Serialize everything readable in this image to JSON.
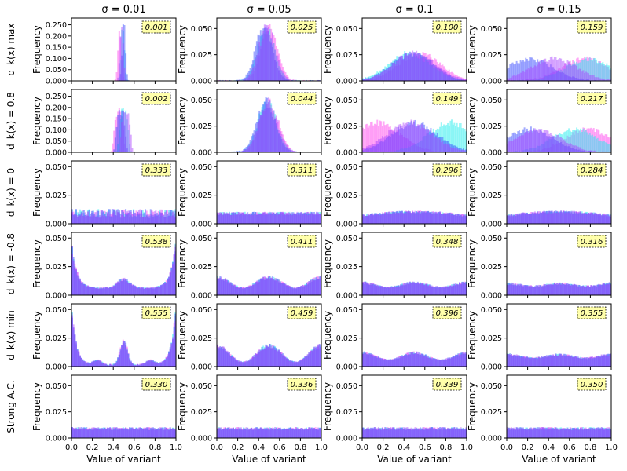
{
  "chart_data": {
    "type": "histogram-grid",
    "title": "",
    "column_titles": [
      "σ = 0.01",
      "σ = 0.05",
      "σ = 0.1",
      "σ = 0.15"
    ],
    "row_labels": [
      "d_k(x) max",
      "d_k(x) = 0.8",
      "d_k(x) = 0",
      "d_k(x) = -0.8",
      "d_k(x) min",
      "Strong A.C."
    ],
    "xlabel": "Value of variant",
    "ylabel": "Frequency",
    "xlim": [
      0,
      1
    ],
    "x_ticks": [
      "0.0",
      "0.2",
      "0.4",
      "0.6",
      "0.8",
      "1.0"
    ],
    "series_colors": [
      "#ff44ee",
      "#22eeee",
      "#3344ff",
      "#aa44ff"
    ],
    "panels": [
      [
        {
          "value_label": "0.001",
          "ylim": [
            0,
            0.28
          ],
          "y_ticks": [
            "0.000",
            "0.050",
            "0.100",
            "0.150",
            "0.200",
            "0.250"
          ],
          "shape": "spike",
          "params": {
            "centers": [
              0.46,
              0.49,
              0.5,
              0.48
            ],
            "width": 0.015,
            "peak": 0.25
          }
        },
        {
          "value_label": "0.025",
          "ylim": [
            0,
            0.06
          ],
          "y_ticks": [
            "0.000",
            "0.025",
            "0.050"
          ],
          "shape": "bell",
          "params": {
            "centers": [
              0.5,
              0.47,
              0.45,
              0.48
            ],
            "width": 0.08,
            "peak": 0.051
          }
        },
        {
          "value_label": "0.100",
          "ylim": [
            0,
            0.06
          ],
          "y_ticks": [
            "0.000",
            "0.025",
            "0.050"
          ],
          "shape": "bell",
          "params": {
            "centers": [
              0.55,
              0.45,
              0.48,
              0.5
            ],
            "width": 0.2,
            "peak": 0.026
          }
        },
        {
          "value_label": "0.159",
          "ylim": [
            0,
            0.06
          ],
          "y_ticks": [
            "0.000",
            "0.025",
            "0.050"
          ],
          "shape": "bimodal",
          "params": {
            "centers": [
              0.75,
              0.78,
              0.22,
              0.45
            ],
            "width": 0.22,
            "peak": 0.021
          }
        }
      ],
      [
        {
          "value_label": "0.002",
          "ylim": [
            0,
            0.28
          ],
          "y_ticks": [
            "0.000",
            "0.050",
            "0.100",
            "0.150",
            "0.200",
            "0.250"
          ],
          "shape": "plateau",
          "params": {
            "centers": [
              0.45,
              0.5,
              0.47,
              0.52
            ],
            "width": 0.05,
            "peak": 0.18
          }
        },
        {
          "value_label": "0.044",
          "ylim": [
            0,
            0.06
          ],
          "y_ticks": [
            "0.000",
            "0.025",
            "0.050"
          ],
          "shape": "bell",
          "params": {
            "centers": [
              0.5,
              0.48,
              0.47,
              0.49
            ],
            "width": 0.09,
            "peak": 0.047
          }
        },
        {
          "value_label": "0.149",
          "ylim": [
            0,
            0.06
          ],
          "y_ticks": [
            "0.000",
            "0.025",
            "0.050"
          ],
          "shape": "bimodal",
          "params": {
            "centers": [
              0.15,
              0.85,
              0.5,
              0.45
            ],
            "width": 0.22,
            "peak": 0.028
          }
        },
        {
          "value_label": "0.217",
          "ylim": [
            0,
            0.06
          ],
          "y_ticks": [
            "0.000",
            "0.025",
            "0.050"
          ],
          "shape": "bimodal",
          "params": {
            "centers": [
              0.78,
              0.65,
              0.22,
              0.3
            ],
            "width": 0.22,
            "peak": 0.022
          }
        }
      ],
      [
        {
          "value_label": "0.333",
          "ylim": [
            0,
            0.055
          ],
          "y_ticks": [
            "0.000",
            "0.025",
            "0.050"
          ],
          "shape": "flat",
          "params": {
            "level": 0.009,
            "noise": 0.004
          }
        },
        {
          "value_label": "0.311",
          "ylim": [
            0,
            0.055
          ],
          "y_ticks": [
            "0.000",
            "0.025",
            "0.050"
          ],
          "shape": "flat",
          "params": {
            "level": 0.009,
            "noise": 0.0015
          }
        },
        {
          "value_label": "0.296",
          "ylim": [
            0,
            0.055
          ],
          "y_ticks": [
            "0.000",
            "0.025",
            "0.050"
          ],
          "shape": "dome",
          "params": {
            "level": 0.009,
            "noise": 0.0012
          }
        },
        {
          "value_label": "0.284",
          "ylim": [
            0,
            0.055
          ],
          "y_ticks": [
            "0.000",
            "0.025",
            "0.050"
          ],
          "shape": "dome",
          "params": {
            "level": 0.009,
            "noise": 0.0012
          }
        }
      ],
      [
        {
          "value_label": "0.538",
          "ylim": [
            0,
            0.055
          ],
          "y_ticks": [
            "0.000",
            "0.025",
            "0.050"
          ],
          "shape": "ushape",
          "params": {
            "edge": 0.04,
            "mid": 0.014,
            "base": 0.006
          }
        },
        {
          "value_label": "0.411",
          "ylim": [
            0,
            0.055
          ],
          "y_ticks": [
            "0.000",
            "0.025",
            "0.050"
          ],
          "shape": "wave",
          "params": {
            "level": 0.011,
            "amp": 0.0045
          }
        },
        {
          "value_label": "0.348",
          "ylim": [
            0,
            0.055
          ],
          "y_ticks": [
            "0.000",
            "0.025",
            "0.050"
          ],
          "shape": "wave",
          "params": {
            "level": 0.009,
            "amp": 0.002
          }
        },
        {
          "value_label": "0.316",
          "ylim": [
            0,
            0.055
          ],
          "y_ticks": [
            "0.000",
            "0.025",
            "0.050"
          ],
          "shape": "wave",
          "params": {
            "level": 0.009,
            "amp": 0.0012
          }
        }
      ],
      [
        {
          "value_label": "0.555",
          "ylim": [
            0,
            0.055
          ],
          "y_ticks": [
            "0.000",
            "0.025",
            "0.050"
          ],
          "shape": "multimodal",
          "params": {
            "edge": 0.05,
            "mid": 0.021,
            "side": 0.004
          }
        },
        {
          "value_label": "0.459",
          "ylim": [
            0,
            0.055
          ],
          "y_ticks": [
            "0.000",
            "0.025",
            "0.050"
          ],
          "shape": "wave",
          "params": {
            "level": 0.011,
            "amp": 0.007
          }
        },
        {
          "value_label": "0.396",
          "ylim": [
            0,
            0.055
          ],
          "y_ticks": [
            "0.000",
            "0.025",
            "0.050"
          ],
          "shape": "wave",
          "params": {
            "level": 0.009,
            "amp": 0.003
          }
        },
        {
          "value_label": "0.355",
          "ylim": [
            0,
            0.055
          ],
          "y_ticks": [
            "0.000",
            "0.025",
            "0.050"
          ],
          "shape": "wave",
          "params": {
            "level": 0.009,
            "amp": 0.0015
          }
        }
      ],
      [
        {
          "value_label": "0.330",
          "ylim": [
            0,
            0.06
          ],
          "y_ticks": [
            "0.000",
            "0.025",
            "0.050"
          ],
          "shape": "flat",
          "params": {
            "level": 0.009,
            "noise": 0.0015
          }
        },
        {
          "value_label": "0.336",
          "ylim": [
            0,
            0.06
          ],
          "y_ticks": [
            "0.000",
            "0.025",
            "0.050"
          ],
          "shape": "flat",
          "params": {
            "level": 0.009,
            "noise": 0.0015
          }
        },
        {
          "value_label": "0.339",
          "ylim": [
            0,
            0.06
          ],
          "y_ticks": [
            "0.000",
            "0.025",
            "0.050"
          ],
          "shape": "flat",
          "params": {
            "level": 0.009,
            "noise": 0.0015
          }
        },
        {
          "value_label": "0.350",
          "ylim": [
            0,
            0.06
          ],
          "y_ticks": [
            "0.000",
            "0.025",
            "0.050"
          ],
          "shape": "flat",
          "params": {
            "level": 0.009,
            "noise": 0.0015
          }
        }
      ]
    ]
  }
}
